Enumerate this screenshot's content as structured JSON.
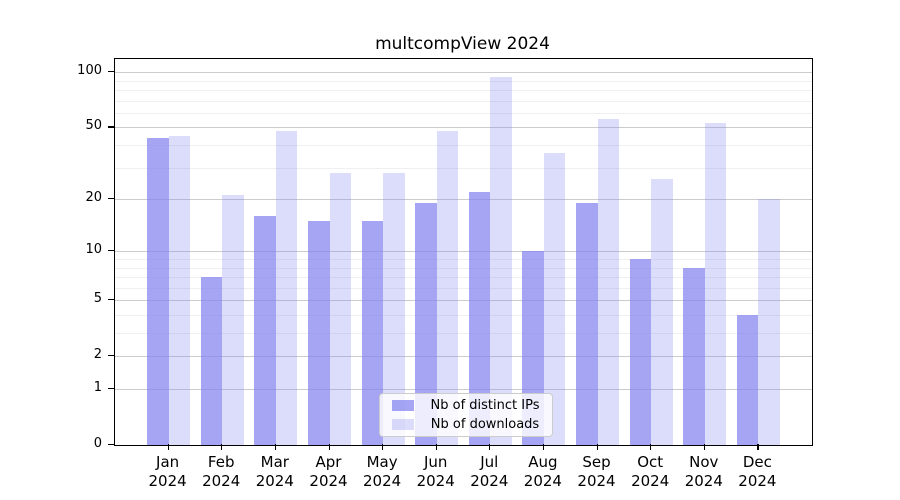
{
  "chart_data": {
    "type": "bar",
    "title": "multcompView 2024",
    "categories": [
      "Jan",
      "Feb",
      "Mar",
      "Apr",
      "May",
      "Jun",
      "Jul",
      "Aug",
      "Sep",
      "Oct",
      "Nov",
      "Dec"
    ],
    "year_label": "2024",
    "series": [
      {
        "name": "Nb of distinct IPs",
        "color": "rgba(130,130,240,0.72)",
        "values": [
          44,
          7,
          16,
          15,
          15,
          19,
          22,
          10,
          19,
          9,
          8,
          4
        ]
      },
      {
        "name": "Nb of downloads",
        "color": "rgba(130,130,240,0.28)",
        "values": [
          45,
          21,
          48,
          28,
          28,
          48,
          94,
          36,
          56,
          26,
          53,
          20
        ]
      }
    ],
    "y_axis": {
      "scale": "log1p",
      "major_ticks": [
        0,
        1,
        2,
        5,
        10,
        20,
        50,
        100
      ],
      "minor_gridlines": [
        3,
        4,
        6,
        7,
        8,
        9,
        30,
        40,
        60,
        70,
        80,
        90
      ],
      "ylim": [
        0,
        118
      ]
    },
    "xlabel": "",
    "ylabel": "",
    "grid": true,
    "legend_position": "bottom-center"
  },
  "colors": {
    "major_grid": "#cccccc",
    "minor_grid": "#efefef",
    "axis": "#000000",
    "text": "#000000",
    "legend_border": "#cccccc",
    "legend_bg": "rgba(255,255,255,0.8)"
  }
}
